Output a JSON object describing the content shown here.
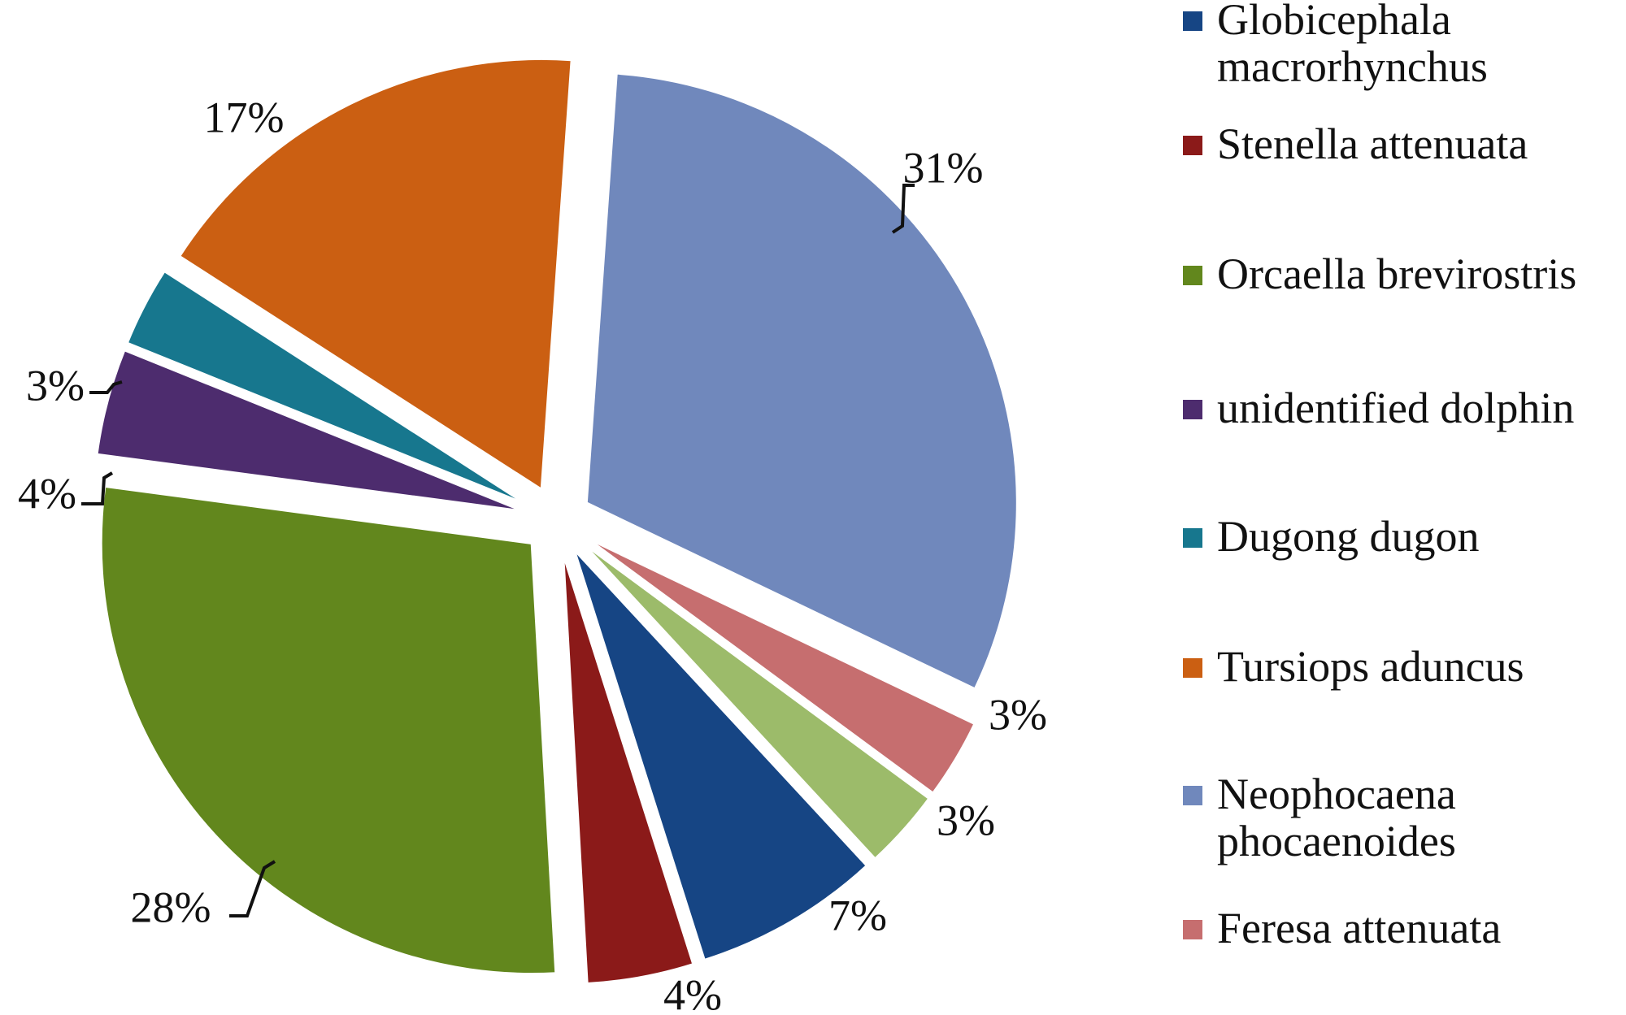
{
  "chart_data": {
    "type": "pie",
    "title": "",
    "slices": [
      {
        "label": "Neophocaena phocaenoides",
        "value": 31,
        "display": "31%",
        "color": "#7088BC"
      },
      {
        "label": "Feresa attenuata",
        "value": 3,
        "display": "3%",
        "color": "#C66E6F"
      },
      {
        "label": "",
        "value": 3,
        "display": "3%",
        "color": "#9CBB6A"
      },
      {
        "label": "Globicephala macrorhynchus",
        "value": 7,
        "display": "7%",
        "color": "#164584"
      },
      {
        "label": "Stenella attenuata",
        "value": 4,
        "display": "4%",
        "color": "#8B1A19"
      },
      {
        "label": "Orcaella brevirostris",
        "value": 28,
        "display": "28%",
        "color": "#62871D"
      },
      {
        "label": "unidentified dolphin",
        "value": 4,
        "display": "4%",
        "color": "#4D2C6E"
      },
      {
        "label": "Dugong dugon",
        "value": 3,
        "display": "3%",
        "color": "#17778E"
      },
      {
        "label": "Tursiops aduncus",
        "value": 17,
        "display": "17%",
        "color": "#CB5F12"
      }
    ],
    "legend": {
      "position": "right",
      "items": [
        {
          "lines": [
            "Globicephala",
            "macrorhynchus"
          ],
          "color": "#164584"
        },
        {
          "lines": [
            "Stenella attenuata"
          ],
          "color": "#8B1A19"
        },
        {
          "lines": [
            "Orcaella brevirostris"
          ],
          "color": "#62871D"
        },
        {
          "lines": [
            "unidentified dolphin"
          ],
          "color": "#4D2C6E"
        },
        {
          "lines": [
            "Dugong dugon"
          ],
          "color": "#17778E"
        },
        {
          "lines": [
            "Tursiops aduncus"
          ],
          "color": "#CB5F12"
        },
        {
          "lines": [
            "Neophocaena",
            "phocaenoides"
          ],
          "color": "#7088BC"
        },
        {
          "lines": [
            "Feresa attenuata"
          ],
          "color": "#C66E6F"
        }
      ]
    }
  }
}
